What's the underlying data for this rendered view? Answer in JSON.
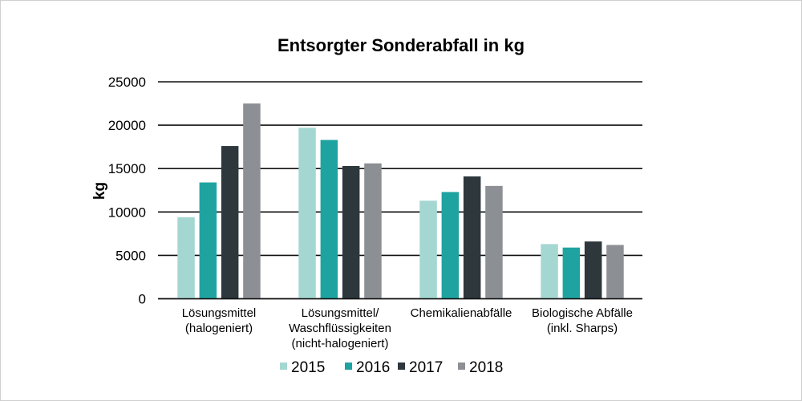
{
  "chart_data": {
    "type": "bar",
    "title": "Entsorgter Sonderabfall in kg",
    "xlabel": "",
    "ylabel": "kg",
    "ylim": [
      0,
      25000
    ],
    "yticks": [
      0,
      5000,
      10000,
      15000,
      20000,
      25000
    ],
    "ytick_labels": [
      "0",
      "5000",
      "10000",
      "15000",
      "20000",
      "25000"
    ],
    "grid": true,
    "legend_position": "bottom",
    "categories": [
      [
        "Lösungsmittel",
        "(halogeniert)"
      ],
      [
        "Lösungsmittel/",
        "Waschflüssigkeiten",
        "(nicht-halogeniert)"
      ],
      [
        "Chemikalienabfälle"
      ],
      [
        "Biologische Abfälle",
        "(inkl. Sharps)"
      ]
    ],
    "series": [
      {
        "name": "2015",
        "color": "#a5d7d2",
        "values": [
          9400,
          19700,
          11300,
          6300
        ]
      },
      {
        "name": "2016",
        "color": "#1fa3a0",
        "values": [
          13400,
          18300,
          12300,
          5900
        ]
      },
      {
        "name": "2017",
        "color": "#2d373c",
        "values": [
          17600,
          15300,
          14100,
          6600
        ]
      },
      {
        "name": "2018",
        "color": "#8c9094",
        "values": [
          22500,
          15600,
          13000,
          6200
        ]
      }
    ]
  }
}
